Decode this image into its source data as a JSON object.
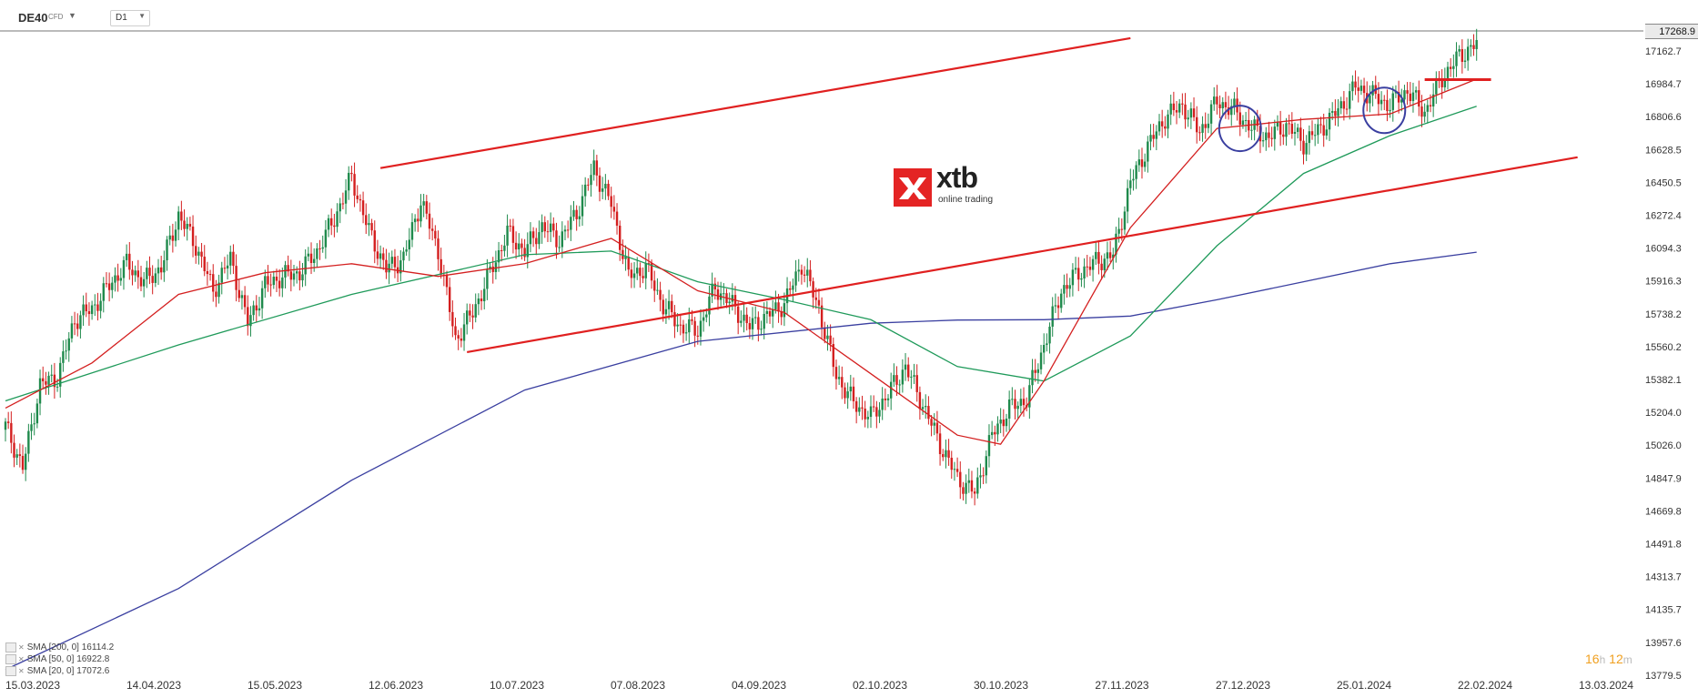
{
  "toolbar": {
    "symbol": "DE40",
    "symbol_type": "CFD",
    "timeframe": "D1"
  },
  "logo": {
    "name": "xtb",
    "tagline": "online trading"
  },
  "countdown": {
    "hours": "16",
    "hours_unit": "h",
    "minutes": "12",
    "minutes_unit": "m"
  },
  "legend": [
    {
      "label": "SMA  [200,  0]",
      "value": "16114.2",
      "color": "#3a3fa0"
    },
    {
      "label": "SMA  [50,  0]",
      "value": "16922.8",
      "color": "#1f9a5a"
    },
    {
      "label": "SMA  [20,  0]",
      "value": "17072.6",
      "color": "#d42020"
    }
  ],
  "chart_data": {
    "type": "candlestick",
    "instrument": "DE40",
    "timeframe": "D1",
    "last_price": "17268.9",
    "x_tick_labels": [
      "15.03.2023",
      "14.04.2023",
      "15.05.2023",
      "12.06.2023",
      "10.07.2023",
      "07.08.2023",
      "04.09.2023",
      "02.10.2023",
      "30.10.2023",
      "27.11.2023",
      "27.12.2023",
      "25.01.2024",
      "22.02.2024",
      "13.03.2024"
    ],
    "y_tick_labels": [
      "17162.7",
      "16984.7",
      "16806.6",
      "16628.5",
      "16450.5",
      "16272.4",
      "16094.3",
      "15916.3",
      "15738.2",
      "15560.2",
      "15382.1",
      "15204.0",
      "15026.0",
      "14847.9",
      "14669.8",
      "14491.8",
      "14313.7",
      "14135.7",
      "13957.6",
      "13779.5"
    ],
    "ylim": [
      13779.5,
      17340
    ],
    "candle_close_path": [
      [
        0,
        15150
      ],
      [
        6,
        14920
      ],
      [
        12,
        15380
      ],
      [
        18,
        15420
      ],
      [
        24,
        15740
      ],
      [
        30,
        15800
      ],
      [
        36,
        15930
      ],
      [
        42,
        16050
      ],
      [
        48,
        15950
      ],
      [
        54,
        16030
      ],
      [
        60,
        16320
      ],
      [
        66,
        16150
      ],
      [
        72,
        15900
      ],
      [
        78,
        16080
      ],
      [
        84,
        15720
      ],
      [
        90,
        15930
      ],
      [
        96,
        15980
      ],
      [
        102,
        16000
      ],
      [
        108,
        16120
      ],
      [
        114,
        16300
      ],
      [
        120,
        16530
      ],
      [
        126,
        16230
      ],
      [
        132,
        16020
      ],
      [
        138,
        16080
      ],
      [
        144,
        16400
      ],
      [
        150,
        16120
      ],
      [
        156,
        15630
      ],
      [
        162,
        15780
      ],
      [
        168,
        16000
      ],
      [
        174,
        16220
      ],
      [
        180,
        16120
      ],
      [
        186,
        16260
      ],
      [
        192,
        16180
      ],
      [
        198,
        16330
      ],
      [
        204,
        16580
      ],
      [
        210,
        16380
      ],
      [
        216,
        15980
      ],
      [
        222,
        16030
      ],
      [
        228,
        15820
      ],
      [
        234,
        15700
      ],
      [
        240,
        15680
      ],
      [
        246,
        15920
      ],
      [
        252,
        15820
      ],
      [
        258,
        15700
      ],
      [
        264,
        15760
      ],
      [
        270,
        15830
      ],
      [
        276,
        16050
      ],
      [
        282,
        15800
      ],
      [
        288,
        15430
      ],
      [
        294,
        15280
      ],
      [
        300,
        15200
      ],
      [
        306,
        15330
      ],
      [
        312,
        15480
      ],
      [
        318,
        15270
      ],
      [
        324,
        15050
      ],
      [
        330,
        14860
      ],
      [
        336,
        14780
      ],
      [
        342,
        15100
      ],
      [
        348,
        15250
      ],
      [
        354,
        15300
      ],
      [
        360,
        15600
      ],
      [
        366,
        15900
      ],
      [
        372,
        16000
      ],
      [
        378,
        16060
      ],
      [
        384,
        16100
      ],
      [
        390,
        16500
      ],
      [
        396,
        16700
      ],
      [
        402,
        16860
      ],
      [
        408,
        16930
      ],
      [
        414,
        16780
      ],
      [
        420,
        16950
      ],
      [
        426,
        16900
      ],
      [
        432,
        16800
      ],
      [
        438,
        16750
      ],
      [
        444,
        16820
      ],
      [
        450,
        16720
      ],
      [
        456,
        16800
      ],
      [
        462,
        16900
      ],
      [
        468,
        17030
      ],
      [
        474,
        16980
      ],
      [
        480,
        16930
      ],
      [
        486,
        17010
      ],
      [
        492,
        16890
      ],
      [
        498,
        17080
      ],
      [
        504,
        17200
      ],
      [
        510,
        17269
      ]
    ],
    "series": [
      {
        "name": "SMA  [200,  0]",
        "color": "#3a3fa0",
        "points": [
          [
            0,
            13800
          ],
          [
            60,
            14250
          ],
          [
            120,
            14850
          ],
          [
            180,
            15350
          ],
          [
            240,
            15620
          ],
          [
            300,
            15720
          ],
          [
            330,
            15738
          ],
          [
            360,
            15740
          ],
          [
            390,
            15760
          ],
          [
            420,
            15850
          ],
          [
            450,
            15950
          ],
          [
            480,
            16050
          ],
          [
            510,
            16114
          ]
        ]
      },
      {
        "name": "SMA  [50,  0]",
        "color": "#1f9a5a",
        "points": [
          [
            0,
            15290
          ],
          [
            60,
            15600
          ],
          [
            120,
            15880
          ],
          [
            180,
            16100
          ],
          [
            210,
            16120
          ],
          [
            240,
            15950
          ],
          [
            270,
            15850
          ],
          [
            300,
            15740
          ],
          [
            330,
            15480
          ],
          [
            360,
            15400
          ],
          [
            390,
            15650
          ],
          [
            420,
            16150
          ],
          [
            450,
            16550
          ],
          [
            480,
            16760
          ],
          [
            510,
            16923
          ]
        ]
      },
      {
        "name": "SMA  [20,  0]",
        "color": "#d42020",
        "points": [
          [
            0,
            15250
          ],
          [
            30,
            15500
          ],
          [
            60,
            15880
          ],
          [
            90,
            16000
          ],
          [
            120,
            16050
          ],
          [
            150,
            15980
          ],
          [
            180,
            16050
          ],
          [
            210,
            16190
          ],
          [
            240,
            15900
          ],
          [
            270,
            15780
          ],
          [
            300,
            15440
          ],
          [
            330,
            15100
          ],
          [
            345,
            15050
          ],
          [
            360,
            15400
          ],
          [
            390,
            16250
          ],
          [
            420,
            16800
          ],
          [
            450,
            16850
          ],
          [
            480,
            16880
          ],
          [
            510,
            17073
          ]
        ]
      }
    ],
    "annotations": [
      {
        "type": "trendline",
        "color": "#e02020",
        "from": [
          130,
          16580
        ],
        "to": [
          390,
          17300
        ]
      },
      {
        "type": "trendline",
        "color": "#e02020",
        "from": [
          160,
          15560
        ],
        "to": [
          545,
          16640
        ]
      },
      {
        "type": "horizontal",
        "color": "#e02020",
        "from": [
          492,
          17070
        ],
        "to": [
          515,
          17070
        ]
      },
      {
        "type": "circle",
        "color": "#3a3fa0",
        "center": [
          428,
          16800
        ]
      },
      {
        "type": "circle",
        "color": "#3a3fa0",
        "center": [
          478,
          16900
        ]
      }
    ],
    "grid": false,
    "legend_position": "bottom-left"
  }
}
